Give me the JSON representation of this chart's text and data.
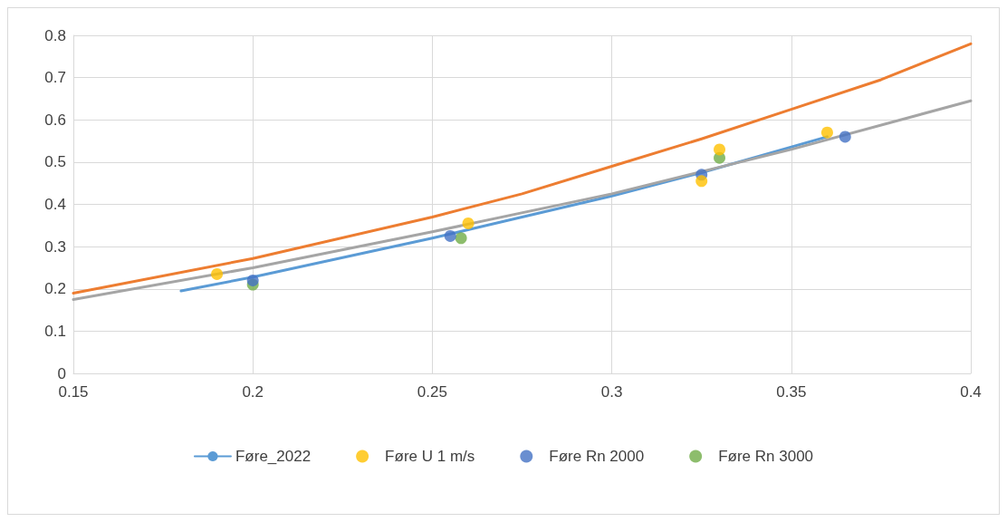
{
  "chart_data": {
    "type": "line",
    "xlim": [
      0.15,
      0.4
    ],
    "xticks": [
      0.15,
      0.2,
      0.25,
      0.3,
      0.35,
      0.4
    ],
    "ylim": [
      0,
      0.8
    ],
    "yticks": [
      0,
      0.1,
      0.2,
      0.3,
      0.4,
      0.5,
      0.6,
      0.7,
      0.8
    ],
    "grid": true,
    "legend": "bottom",
    "marker": "none",
    "series": [
      {
        "name": "Føre_2022",
        "color": "#5b9bd5",
        "x": [
          0.18,
          0.2,
          0.25,
          0.3,
          0.325,
          0.36
        ],
        "values": [
          0.195,
          0.228,
          0.32,
          0.42,
          0.475,
          0.56
        ]
      },
      {
        "color": "#ed7d31",
        "x": [
          0.15,
          0.2,
          0.25,
          0.275,
          0.3,
          0.325,
          0.35,
          0.375,
          0.4
        ],
        "values": [
          0.19,
          0.272,
          0.37,
          0.425,
          0.49,
          0.555,
          0.625,
          0.695,
          0.78
        ]
      },
      {
        "color": "#a5a5a5",
        "x": [
          0.15,
          0.2,
          0.25,
          0.3,
          0.35,
          0.4
        ],
        "values": [
          0.175,
          0.25,
          0.335,
          0.425,
          0.53,
          0.645
        ]
      },
      {
        "name": "Føre U 1 m/s",
        "type": "scatter",
        "marker": "circle",
        "color": "#ffc000",
        "x": [
          0.19,
          0.26,
          0.325,
          0.33,
          0.36
        ],
        "values": [
          0.235,
          0.355,
          0.455,
          0.53,
          0.57
        ]
      },
      {
        "name": "Føre Rn 2000",
        "type": "scatter",
        "marker": "circle",
        "color": "#4472c4",
        "x": [
          0.2,
          0.255,
          0.325,
          0.365
        ],
        "values": [
          0.22,
          0.325,
          0.47,
          0.56
        ]
      },
      {
        "name": "Føre Rn 3000",
        "type": "scatter",
        "marker": "circle",
        "color": "#70ad47",
        "x": [
          0.2,
          0.258,
          0.33
        ],
        "values": [
          0.21,
          0.32,
          0.51
        ]
      }
    ]
  }
}
